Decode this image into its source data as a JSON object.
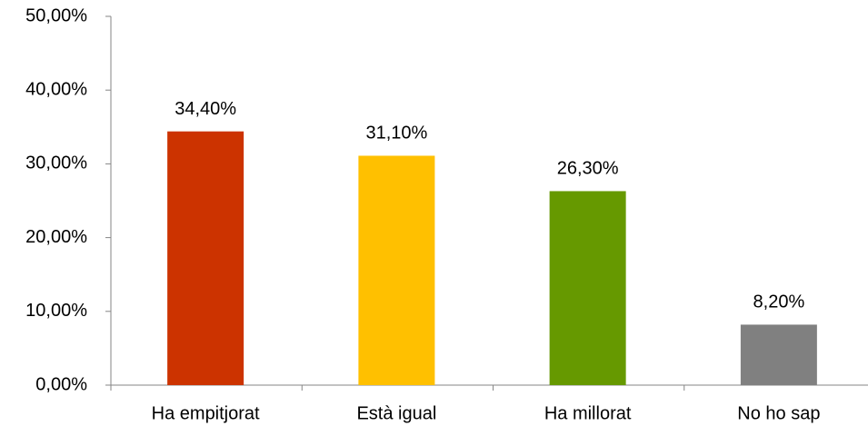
{
  "chart_data": {
    "type": "bar",
    "categories": [
      "Ha empitjorat",
      "Està igual",
      "Ha millorat",
      "No ho sap"
    ],
    "values": [
      34.4,
      31.1,
      26.3,
      8.2
    ],
    "value_labels": [
      "34,40%",
      "31,10%",
      "26,30%",
      "8,20%"
    ],
    "colors": [
      "#cc3300",
      "#ffc000",
      "#669900",
      "#808080"
    ],
    "ylim": [
      0,
      50
    ],
    "yticks": [
      {
        "value": 0,
        "label": "0,00%"
      },
      {
        "value": 10,
        "label": "10,00%"
      },
      {
        "value": 20,
        "label": "20,00%"
      },
      {
        "value": 30,
        "label": "30,00%"
      },
      {
        "value": 40,
        "label": "40,00%"
      },
      {
        "value": 50,
        "label": "50,00%"
      }
    ],
    "grid": false
  }
}
